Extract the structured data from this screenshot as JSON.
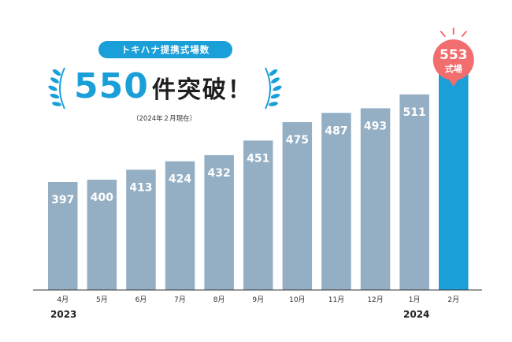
{
  "header": {
    "pill_label": "トキハナ提携式場数",
    "headline_number": "550",
    "headline_text": "件突破！",
    "as_of": "（2024年２月現在）"
  },
  "callout": {
    "value": "553",
    "unit": "式場",
    "color": "#f26d6d"
  },
  "years": {
    "left": "2023",
    "right": "2024"
  },
  "colors": {
    "bar": "#94afc4",
    "highlight": "#1a9fd8",
    "baseline": "#333333",
    "laurel": "#1a9fd8"
  },
  "chart_data": {
    "type": "bar",
    "categories": [
      "4月",
      "5月",
      "6月",
      "7月",
      "8月",
      "9月",
      "10月",
      "11月",
      "12月",
      "1月",
      "2月"
    ],
    "values": [
      397,
      400,
      413,
      424,
      432,
      451,
      475,
      487,
      493,
      511,
      553
    ],
    "value_labels": [
      "397",
      "400",
      "413",
      "424",
      "432",
      "451",
      "475",
      "487",
      "493",
      "511",
      ""
    ],
    "highlight_index": 10,
    "ylim": [
      0,
      600
    ],
    "title": "",
    "xlabel": "",
    "ylabel": "",
    "grid": false,
    "legend": "none"
  }
}
